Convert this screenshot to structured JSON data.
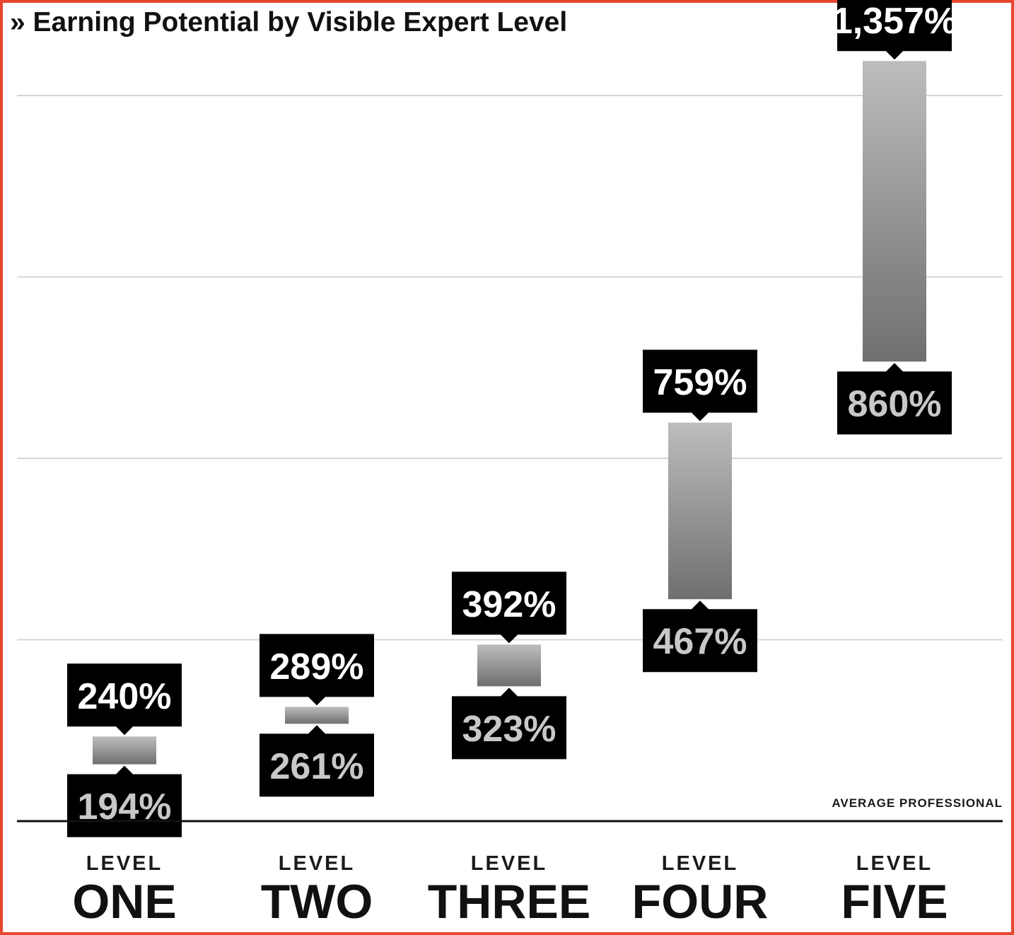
{
  "title": "» Earning Potential by Visible Expert Level",
  "chart_data": {
    "type": "bar",
    "subtype": "floating-range",
    "title": "» Earning Potential by Visible Expert Level",
    "baseline_label": "AVERAGE PROFESSIONAL",
    "categories": [
      {
        "small": "LEVEL",
        "big": "ONE"
      },
      {
        "small": "LEVEL",
        "big": "TWO"
      },
      {
        "small": "LEVEL",
        "big": "THREE"
      },
      {
        "small": "LEVEL",
        "big": "FOUR"
      },
      {
        "small": "LEVEL",
        "big": "FIVE"
      }
    ],
    "low": [
      194,
      261,
      323,
      467,
      860
    ],
    "high": [
      240,
      289,
      392,
      759,
      1357
    ],
    "low_labels": [
      "194%",
      "261%",
      "323%",
      "467%",
      "860%"
    ],
    "high_labels": [
      "240%",
      "289%",
      "392%",
      "759%",
      "1,357%"
    ],
    "ylim": [
      100,
      1500
    ],
    "gridlines": [
      400,
      700,
      1000,
      1300
    ],
    "grid": true,
    "colors": {
      "border": "#e8462f",
      "label_bg": "#000000",
      "high_text": "#ffffff",
      "low_text": "#c8c8c8",
      "bar_top": "#bdbdbd",
      "bar_bottom": "#6f6f6f",
      "gridline": "#d6d6d6",
      "baseline": "#111111"
    }
  }
}
